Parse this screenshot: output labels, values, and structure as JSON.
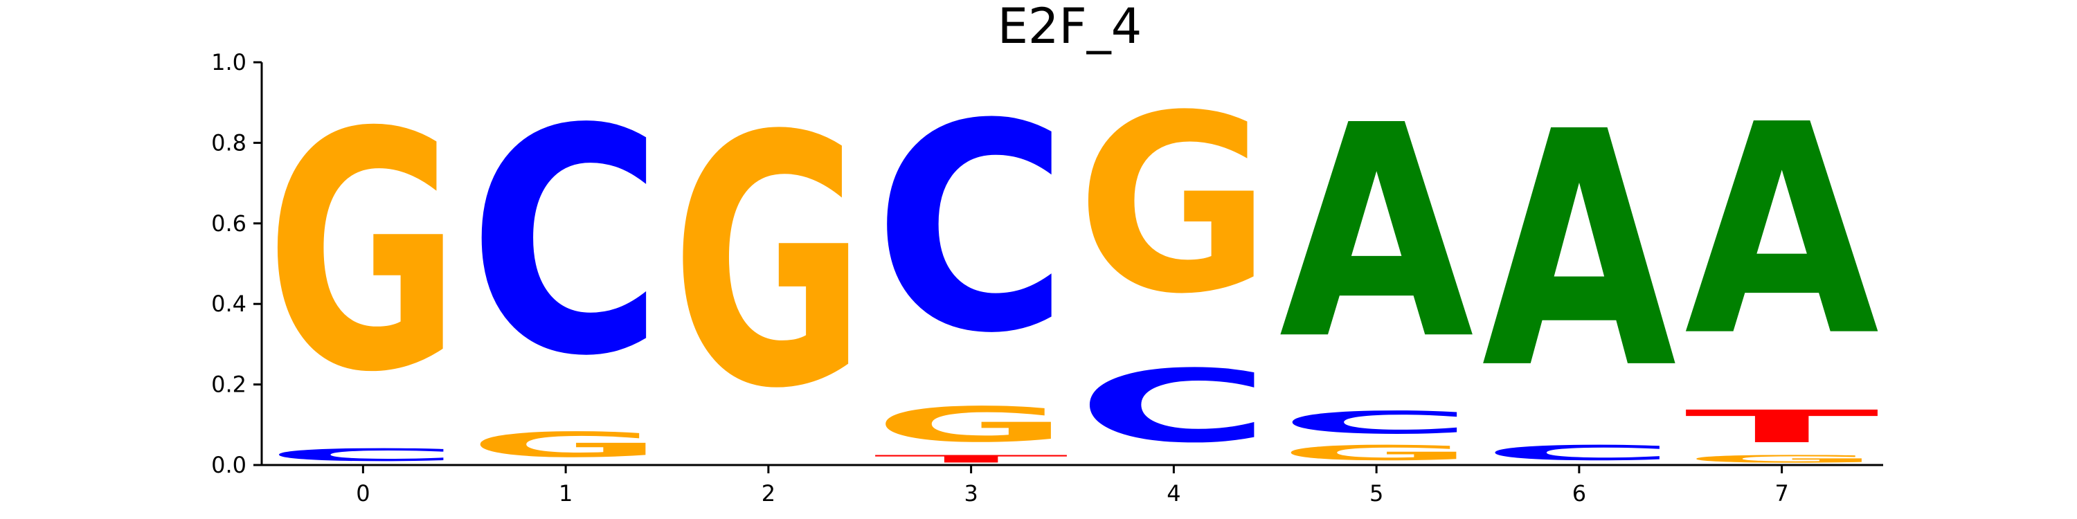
{
  "chart_data": {
    "type": "sequence-logo",
    "title": "E2F_4",
    "xlabel": "",
    "ylabel": "",
    "ylim": [
      0,
      1
    ],
    "y_ticks": [
      0.0,
      0.2,
      0.4,
      0.6,
      0.8,
      1.0
    ],
    "y_tick_labels": [
      "0.0",
      "0.2",
      "0.4",
      "0.6",
      "0.8",
      "1.0"
    ],
    "x_ticks": [
      0,
      1,
      2,
      3,
      4,
      5,
      6,
      7
    ],
    "x_tick_labels": [
      "0",
      "1",
      "2",
      "3",
      "4",
      "5",
      "6",
      "7"
    ],
    "colors": {
      "A": "#008000",
      "C": "#0000ff",
      "G": "#ffa500",
      "T": "#ff0000"
    },
    "positions": [
      {
        "pos": 0,
        "stack": [
          {
            "base": "C",
            "height": 0.05
          },
          {
            "base": "G",
            "height": 0.95
          }
        ]
      },
      {
        "pos": 1,
        "stack": [
          {
            "base": "G",
            "height": 0.1
          },
          {
            "base": "C",
            "height": 0.9
          }
        ]
      },
      {
        "pos": 2,
        "stack": [
          {
            "base": "G",
            "height": 1.0
          }
        ]
      },
      {
        "pos": 3,
        "stack": [
          {
            "base": "T",
            "height": 0.03
          },
          {
            "base": "G",
            "height": 0.14
          },
          {
            "base": "C",
            "height": 0.83
          }
        ]
      },
      {
        "pos": 4,
        "stack": [
          {
            "base": "C",
            "height": 0.29
          },
          {
            "base": "G",
            "height": 0.71
          }
        ]
      },
      {
        "pos": 5,
        "stack": [
          {
            "base": "G",
            "height": 0.06
          },
          {
            "base": "C",
            "height": 0.09
          },
          {
            "base": "A",
            "height": 0.85
          }
        ]
      },
      {
        "pos": 6,
        "stack": [
          {
            "base": "C",
            "height": 0.06
          },
          {
            "base": "A",
            "height": 0.94
          }
        ]
      },
      {
        "pos": 7,
        "stack": [
          {
            "base": "G",
            "height": 0.03
          },
          {
            "base": "T",
            "height": 0.13
          },
          {
            "base": "A",
            "height": 0.84
          }
        ]
      }
    ]
  }
}
